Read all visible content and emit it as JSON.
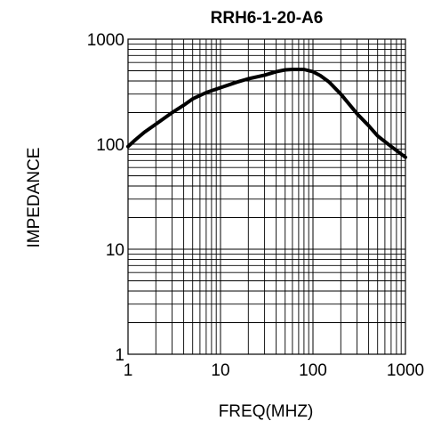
{
  "chart_data": {
    "type": "line",
    "title": "RRH6-1-20-A6",
    "xlabel": "FREQ(MHZ)",
    "ylabel": "IMPEDANCE",
    "x_scale": "log",
    "y_scale": "log",
    "xlim": [
      1,
      1000
    ],
    "ylim": [
      1,
      1000
    ],
    "x_ticks": [
      "1",
      "10",
      "100",
      "1000"
    ],
    "y_ticks": [
      "1000",
      "100",
      "10",
      "1"
    ],
    "grid": true,
    "line_color": "#000000",
    "series": [
      {
        "x": [
          1,
          1.2,
          1.5,
          2,
          3,
          4,
          5,
          7,
          10,
          15,
          20,
          30,
          40,
          50,
          60,
          80,
          100,
          120,
          150,
          200,
          300,
          400,
          500,
          700,
          1000
        ],
        "y": [
          95,
          110,
          130,
          155,
          200,
          235,
          270,
          310,
          345,
          390,
          420,
          455,
          490,
          510,
          515,
          515,
          490,
          450,
          390,
          300,
          195,
          150,
          120,
          95,
          75
        ]
      }
    ]
  }
}
